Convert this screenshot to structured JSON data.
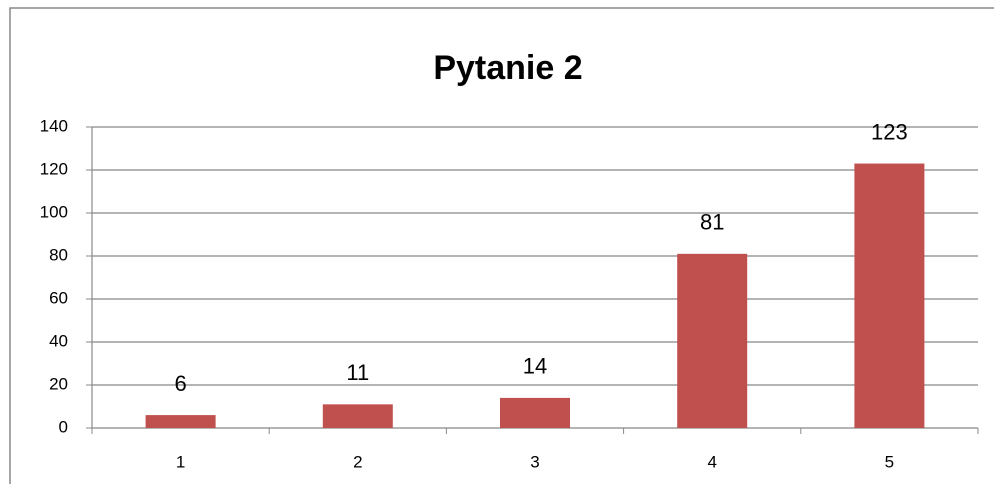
{
  "chart_data": {
    "type": "bar",
    "title": "Pytanie 2",
    "categories": [
      "1",
      "2",
      "3",
      "4",
      "5"
    ],
    "values": [
      6,
      11,
      14,
      81,
      123
    ],
    "color": "#c0504d",
    "ylim": [
      0,
      140
    ],
    "yticks": [
      0,
      20,
      40,
      60,
      80,
      100,
      120,
      140
    ],
    "grid": true
  }
}
